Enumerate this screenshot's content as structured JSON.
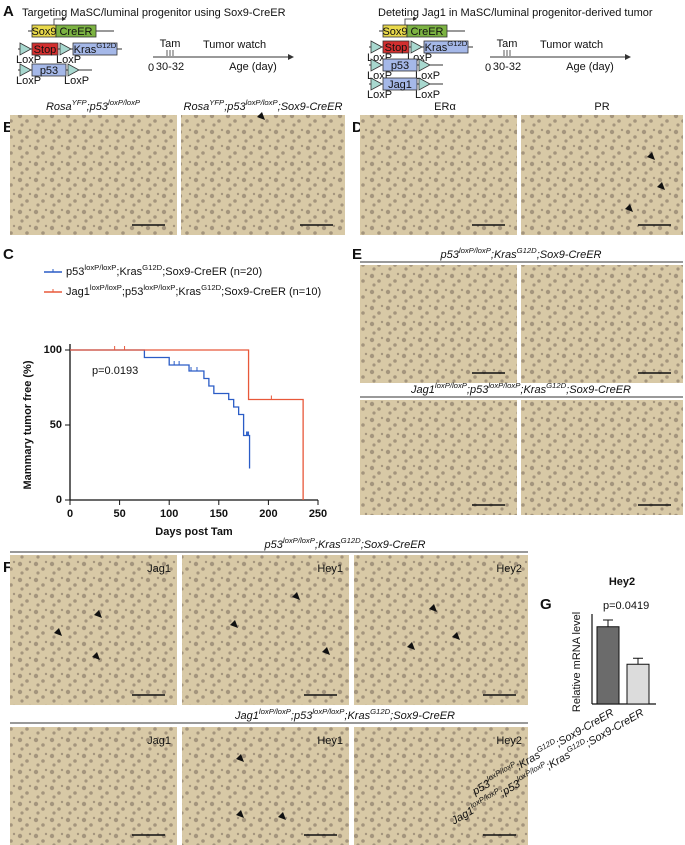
{
  "panel_letters": [
    "A",
    "B",
    "C",
    "D",
    "E",
    "F",
    "G"
  ],
  "panel_a": {
    "left": {
      "title": "Targeting MaSC/luminal progenitor using Sox9-CreER",
      "construct": {
        "sox9": "Sox9",
        "creer": "CreER",
        "stop": "Stop",
        "kras": [
          "Kras",
          "G12D"
        ],
        "p53": "p53",
        "loxp": [
          "LoxP",
          "LoxP",
          "LoxP",
          "LoxP"
        ]
      },
      "timeline": {
        "tam": "Tam",
        "days": "30-32",
        "start": "0",
        "watch": "Tumor watch",
        "axis": "Age (day)"
      }
    },
    "right": {
      "title": "Deteting Jag1 in MaSC/luminal progenitor-derived tumor",
      "construct": {
        "sox9": "Sox9",
        "creer": "CreER",
        "stop": "Stop",
        "kras": [
          "Kras",
          "G12D"
        ],
        "p53": "p53",
        "jag1": "Jag1",
        "loxp": [
          "LoxP",
          "LoxP",
          "LoxP",
          "LoxP",
          "LoxP",
          "LoxP"
        ]
      },
      "timeline": {
        "tam": "Tam",
        "days": "30-32",
        "start": "0",
        "watch": "Tumor watch",
        "axis": "Age (day)"
      }
    }
  },
  "panel_b": {
    "labels": [
      [
        "Rosa",
        "YFP",
        ";p53",
        "loxP/loxP"
      ],
      [
        "Rosa",
        "YFP",
        ";p53",
        "loxP/loxP",
        ";Sox9-CreER"
      ]
    ]
  },
  "panel_d": {
    "labels": [
      "ERα",
      "PR"
    ]
  },
  "panel_e": {
    "labels": [
      [
        "p53",
        "loxP/loxP",
        ";Kras",
        "G12D",
        ";Sox9-CreER"
      ],
      [
        "Jag1",
        "loxP/loxP",
        ";p53",
        "loxP/loxP",
        ";Kras",
        "G12D",
        ";Sox9-CreER"
      ]
    ]
  },
  "panel_f": {
    "labels": [
      [
        "p53",
        "loxP/loxP",
        ";Kras",
        "G12D",
        ";Sox9-CreER"
      ],
      [
        "Jag1",
        "loxP/loxP",
        ";p53",
        "loxP/loxP",
        ";Kras",
        "G12D",
        ";Sox9-CreER"
      ]
    ],
    "stains": [
      [
        "Jag1",
        "Hey1",
        "Hey2"
      ],
      [
        "Jag1",
        "Hey1",
        "Hey2"
      ]
    ]
  },
  "chart_data": [
    {
      "type": "step",
      "ylabel": "Mammary tumor free (%)",
      "xlabel": "Days post Tam",
      "annotation": "p=0.0193",
      "xlim": [
        0,
        250
      ],
      "ylim": [
        0,
        100
      ],
      "xticks": [
        0,
        50,
        100,
        150,
        200,
        250
      ],
      "yticks": [
        0,
        50,
        100
      ],
      "series": [
        {
          "name": [
            "p53",
            "loxP/loxP",
            ";Kras",
            "G12D",
            ";Sox9-CreER (n=20)"
          ],
          "color": "#2a5cc6",
          "x": [
            0,
            75,
            75,
            100,
            100,
            120,
            120,
            135,
            135,
            140,
            140,
            145,
            145,
            160,
            160,
            165,
            165,
            170,
            170,
            175,
            175,
            181,
            181
          ],
          "values": [
            100,
            100,
            95,
            95,
            90,
            90,
            86,
            86,
            81,
            81,
            76,
            76,
            71,
            71,
            67,
            67,
            62,
            62,
            57,
            57,
            43,
            43,
            21
          ],
          "censored_x": [
            105,
            110,
            122,
            128,
            178,
            179,
            180
          ],
          "censored_values": [
            90,
            90,
            86,
            86,
            43,
            43,
            43
          ]
        },
        {
          "name": [
            "Jag1",
            "loxP/loxP",
            ";p53",
            "loxP/loxP",
            ";Kras",
            "G12D",
            ";Sox9-CreER (n=10)"
          ],
          "color": "#e8583a",
          "x": [
            0,
            180,
            180,
            235,
            235
          ],
          "values": [
            100,
            100,
            67,
            67,
            0
          ],
          "censored_x": [
            45,
            55,
            203
          ],
          "censored_values": [
            100,
            100,
            67
          ]
        }
      ]
    },
    {
      "type": "bar",
      "title": "Hey2",
      "ylabel": "Relative mRNA level",
      "annotation": "p=0.0419",
      "categories": [
        [
          "p53",
          "loxP/loxP",
          ";Kras",
          "G12D",
          ";Sox9-CreER"
        ],
        [
          "Jag1",
          "loxP/loxP",
          ";p53",
          "loxP/loxP",
          ";Kras",
          "G12D",
          ";Sox9-CreER"
        ]
      ],
      "values": [
        1.03,
        0.53
      ],
      "errors": [
        0.09,
        0.08
      ],
      "colors": [
        "#6b6b6b",
        "#dcdcdc"
      ],
      "ylim": [
        0,
        1.2
      ]
    }
  ]
}
